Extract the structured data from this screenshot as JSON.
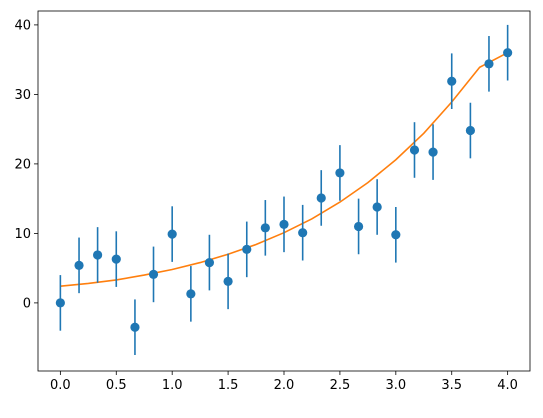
{
  "chart_data": {
    "type": "scatter",
    "title": "",
    "xlabel": "",
    "ylabel": "",
    "xlim": [
      -0.2,
      4.2
    ],
    "ylim": [
      -9.8,
      42.0
    ],
    "grid": false,
    "legend": "none",
    "xticks": [
      0.0,
      0.5,
      1.0,
      1.5,
      2.0,
      2.5,
      3.0,
      3.5,
      4.0
    ],
    "xtick_labels": [
      "0.0",
      "0.5",
      "1.0",
      "1.5",
      "2.0",
      "2.5",
      "3.0",
      "3.5",
      "4.0"
    ],
    "yticks": [
      0,
      10,
      20,
      30,
      40
    ],
    "ytick_labels": [
      "0",
      "10",
      "20",
      "30",
      "40"
    ],
    "series": [
      {
        "type": "errorbar",
        "color": "#1f77b4",
        "x": [
          0.0,
          0.167,
          0.333,
          0.5,
          0.667,
          0.833,
          1.0,
          1.167,
          1.333,
          1.5,
          1.667,
          1.833,
          2.0,
          2.167,
          2.333,
          2.5,
          2.667,
          2.833,
          3.0,
          3.167,
          3.333,
          3.5,
          3.667,
          3.833,
          4.0
        ],
        "y": [
          0.0,
          5.4,
          6.9,
          6.3,
          -3.5,
          4.1,
          9.9,
          1.3,
          5.8,
          3.1,
          7.7,
          10.8,
          11.3,
          10.1,
          15.1,
          18.7,
          11.0,
          13.8,
          9.8,
          22.0,
          21.7,
          31.9,
          24.8,
          34.4,
          36.0
        ],
        "yerr": 4.0
      },
      {
        "type": "line",
        "color": "#ff7f0e",
        "x": [
          0.0,
          0.25,
          0.5,
          0.75,
          1.0,
          1.25,
          1.5,
          1.75,
          2.0,
          2.25,
          2.5,
          2.75,
          3.0,
          3.25,
          3.5,
          3.75,
          4.0
        ],
        "y": [
          2.4,
          2.8,
          3.3,
          4.0,
          4.8,
          5.8,
          7.0,
          8.4,
          10.1,
          12.1,
          14.5,
          17.3,
          20.6,
          24.4,
          28.9,
          33.9,
          36.0
        ]
      }
    ]
  }
}
